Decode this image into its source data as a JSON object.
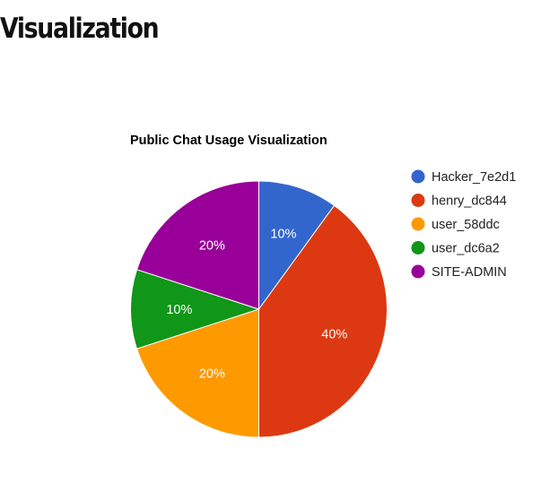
{
  "page": {
    "heading": "Visualization"
  },
  "chart_data": {
    "type": "pie",
    "title": "Public Chat Usage Visualization",
    "legend_position": "right",
    "slices": [
      {
        "name": "Hacker_7e2d1",
        "value": 10,
        "label": "10%",
        "color": "#3366cc"
      },
      {
        "name": "henry_dc844",
        "value": 40,
        "label": "40%",
        "color": "#dc3912"
      },
      {
        "name": "user_58ddc",
        "value": 20,
        "label": "20%",
        "color": "#ff9900"
      },
      {
        "name": "user_dc6a2",
        "value": 10,
        "label": "10%",
        "color": "#109618"
      },
      {
        "name": "SITE-ADMIN",
        "value": 20,
        "label": "20%",
        "color": "#990099"
      }
    ]
  }
}
